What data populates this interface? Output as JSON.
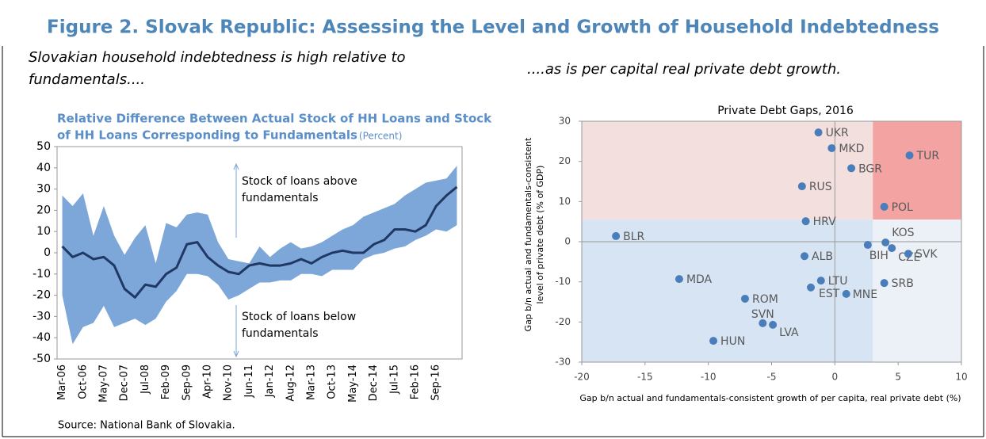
{
  "title": "Figure 2. Slovak Republic: Assessing the Level and Growth of Household Indebtedness",
  "subtitle_left": [
    "Slovakian household indebtedness is high relative to",
    "fundamentals...."
  ],
  "subtitle_right": "....as is per capital real private debt growth.",
  "source": "Source: National Bank of Slovakia.",
  "chart_data": [
    {
      "type": "line",
      "title_lines": [
        "Relative Difference Between Actual Stock of HH Loans and Stock",
        "of HH Loans Corresponding  to Fundamentals"
      ],
      "subtitle": "(Percent)",
      "categories": [
        "Mar-06",
        null,
        "Oct-06",
        null,
        "May-07",
        null,
        "Dec-07",
        null,
        "Jul-08",
        null,
        "Feb-09",
        null,
        "Sep-09",
        null,
        "Apr-10",
        null,
        "Nov-10",
        null,
        "Jun-11",
        null,
        "Jan-12",
        null,
        "Aug-12",
        null,
        "Mar-13",
        null,
        "Oct-13",
        null,
        "May-14",
        null,
        "Dec-14",
        null,
        "Jul-15",
        null,
        "Feb-16",
        null,
        "Sep-16",
        null,
        null
      ],
      "values": [
        3,
        -2,
        0,
        -3,
        -2,
        -6,
        -17,
        -21,
        -15,
        -16,
        -10,
        -7,
        4,
        5,
        -2,
        -6,
        -9,
        -10,
        -6,
        -5,
        -6,
        -6,
        -5,
        -3,
        -5,
        -2,
        0,
        1,
        0,
        0,
        4,
        6,
        11,
        11,
        10,
        13,
        22,
        27,
        31
      ],
      "color": "#1f3864",
      "band": {
        "color": "#7da6d9",
        "upper": [
          27,
          22,
          28,
          8,
          22,
          8,
          -1,
          7,
          13,
          -5,
          14,
          12,
          18,
          19,
          18,
          5,
          -3,
          -4,
          -5,
          3,
          -2,
          2,
          5,
          2,
          3,
          5,
          8,
          11,
          13,
          17,
          19,
          21,
          23,
          27,
          30,
          33,
          34,
          35,
          41
        ],
        "lower": [
          -20,
          -43,
          -35,
          -33,
          -25,
          -35,
          -33,
          -31,
          -34,
          -31,
          -23,
          -18,
          -10,
          -10,
          -11,
          -15,
          -22,
          -20,
          -17,
          -14,
          -14,
          -13,
          -13,
          -10,
          -10,
          -11,
          -8,
          -8,
          -8,
          -3,
          -1,
          0,
          2,
          3,
          6,
          8,
          11,
          10,
          13
        ]
      },
      "annotations": [
        [
          "Stock of loans above",
          "fundamentals"
        ],
        [
          "Stock of loans below",
          "fundamentals"
        ]
      ],
      "ylim": [
        -50,
        50
      ],
      "yticks": [
        -50,
        -40,
        -30,
        -20,
        -10,
        0,
        10,
        20,
        30,
        40,
        50
      ]
    },
    {
      "type": "scatter",
      "title": "Private Debt Gaps, 2016",
      "xlabel": "Gap b/n actual and fundamentals-consistent growth of per capita, real private debt (%)",
      "ylabel": [
        "Gap b/n actual and fundamentals-consistent",
        "level of private debt (% of GDP)"
      ],
      "color": "#4a7ebb",
      "points": [
        {
          "label": "UKR",
          "x": -1.3,
          "y": 27.2
        },
        {
          "label": "MKD",
          "x": -0.25,
          "y": 23.3
        },
        {
          "label": "TUR",
          "x": 5.9,
          "y": 21.5
        },
        {
          "label": "BGR",
          "x": 1.3,
          "y": 18.3
        },
        {
          "label": "RUS",
          "x": -2.6,
          "y": 13.8
        },
        {
          "label": "POL",
          "x": 3.9,
          "y": 8.7
        },
        {
          "label": "HRV",
          "x": -2.3,
          "y": 5.1
        },
        {
          "label": "BLR",
          "x": -17.3,
          "y": 1.4
        },
        {
          "label": "KOS",
          "x": 4.0,
          "y": -0.2
        },
        {
          "label": "BIH",
          "x": 2.6,
          "y": -0.8
        },
        {
          "label": "CZE",
          "x": 4.5,
          "y": -1.6
        },
        {
          "label": "SVK",
          "x": 5.8,
          "y": -3.0
        },
        {
          "label": "ALB",
          "x": -2.4,
          "y": -3.6
        },
        {
          "label": "MDA",
          "x": -12.3,
          "y": -9.3
        },
        {
          "label": "LTU",
          "x": -1.1,
          "y": -9.7
        },
        {
          "label": "SRB",
          "x": 3.9,
          "y": -10.3
        },
        {
          "label": "EST",
          "x": -1.9,
          "y": -11.4
        },
        {
          "label": "MNE",
          "x": 0.9,
          "y": -13.0
        },
        {
          "label": "ROM",
          "x": -7.1,
          "y": -14.2
        },
        {
          "label": "SVN",
          "x": -5.7,
          "y": -20.3
        },
        {
          "label": "LVA",
          "x": -4.9,
          "y": -20.7
        },
        {
          "label": "HUN",
          "x": -9.6,
          "y": -24.7
        }
      ],
      "quadrant_split": {
        "x": 3,
        "y": 5.5
      },
      "quadrant_colors": {
        "upper_left": "#f4dfdf",
        "upper_right": "#f4a3a3",
        "lower_left": "#d7e4f3",
        "lower_right": "#ecf1f8"
      },
      "xlim": [
        -20,
        10
      ],
      "xticks": [
        -20,
        -15,
        -10,
        -5,
        0,
        5,
        10
      ],
      "ylim": [
        -30,
        30
      ],
      "yticks": [
        -30,
        -20,
        -10,
        0,
        10,
        20,
        30
      ]
    }
  ]
}
